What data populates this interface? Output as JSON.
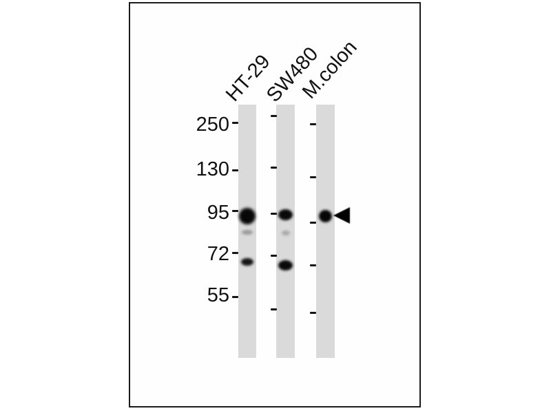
{
  "figure": {
    "type": "western-blot",
    "lane_labels": [
      {
        "label": "HT-29"
      },
      {
        "label": "SW480"
      },
      {
        "label": "M.colon"
      }
    ],
    "marker_labels": [
      {
        "label": "250"
      },
      {
        "label": "130"
      },
      {
        "label": "95"
      },
      {
        "label": "72"
      },
      {
        "label": "55"
      }
    ],
    "arrow_icon": "arrowhead-left-icon",
    "colors": {
      "background": "#ffffff",
      "frame_border": "#1a1a1a",
      "lane_strip": "#dadada",
      "band_dark": "#0a0a0a",
      "band_faint": "#a0a0a0",
      "arrow": "#000000",
      "text": "#111111"
    }
  }
}
